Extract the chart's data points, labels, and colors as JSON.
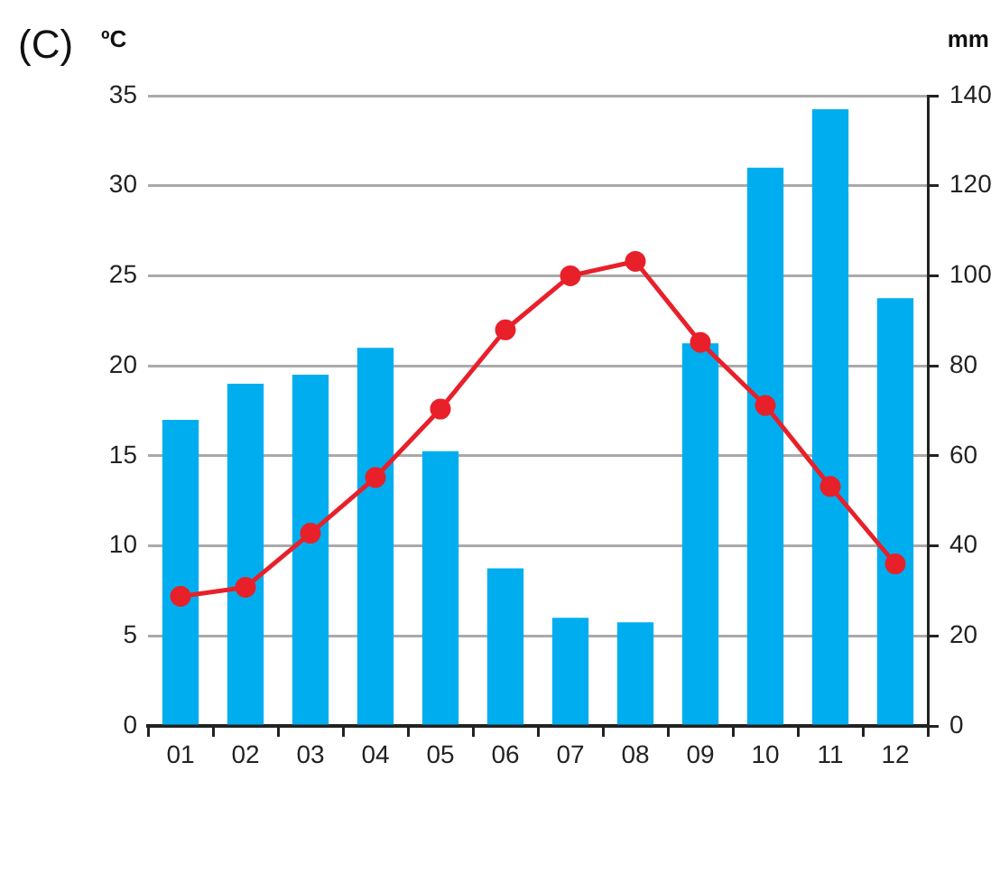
{
  "chart_data": {
    "type": "bar",
    "title": "(C)",
    "ylabel": "ºC",
    "y2label": "mm",
    "categories": [
      "01",
      "02",
      "03",
      "04",
      "05",
      "06",
      "07",
      "08",
      "09",
      "10",
      "11",
      "12"
    ],
    "series": [
      {
        "axis": "y2",
        "color": "#00aeef",
        "values": [
          68,
          76,
          78,
          84,
          61,
          35,
          24,
          23,
          85,
          124,
          137,
          95
        ]
      },
      {
        "type": "line",
        "axis": "y",
        "color": "#e8202a",
        "values": [
          7.2,
          7.7,
          10.7,
          13.8,
          17.6,
          22.0,
          25.0,
          25.8,
          21.3,
          17.8,
          13.3,
          9.0
        ]
      }
    ],
    "ylim": [
      0,
      35
    ],
    "yticks": [
      0,
      5,
      10,
      15,
      20,
      25,
      30,
      35
    ],
    "y2lim": [
      0,
      140
    ],
    "y2ticks": [
      0,
      20,
      40,
      60,
      80,
      100,
      120,
      140
    ],
    "grid": "y",
    "legend": false,
    "marker": "circle"
  }
}
